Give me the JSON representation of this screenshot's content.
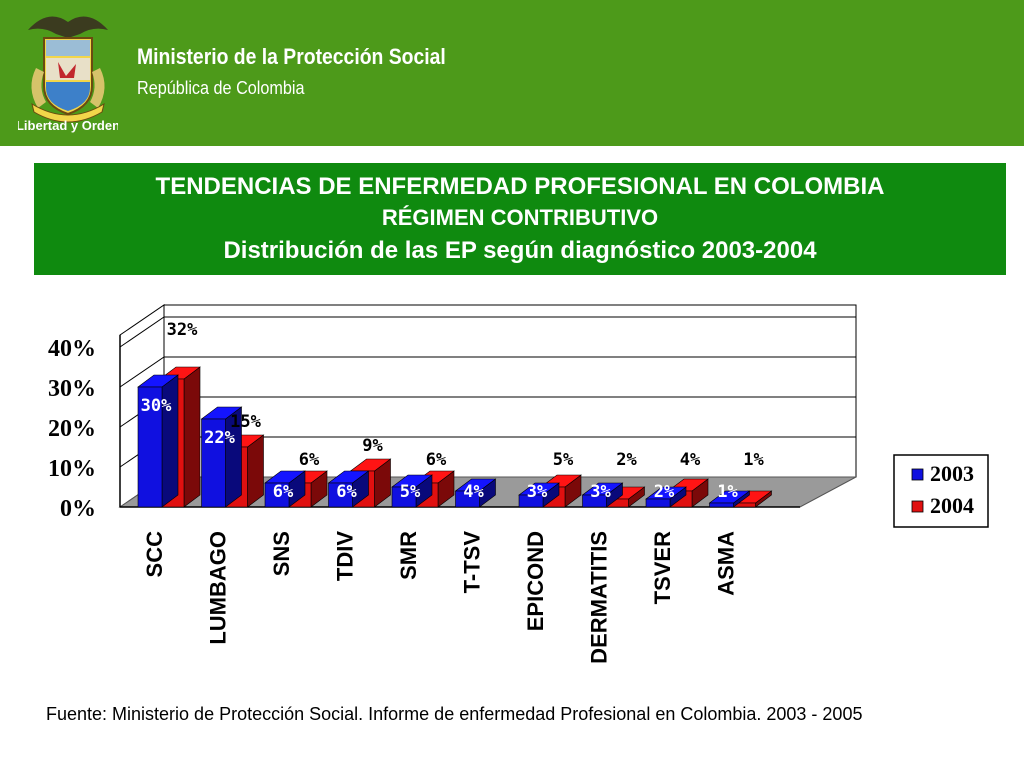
{
  "header": {
    "org_name": "Ministerio de la Protección Social",
    "org_sub": "República de Colombia",
    "logo_motto": "Libertad y Orden",
    "background_color": "#4d9a1a"
  },
  "title": {
    "line1": "TENDENCIAS DE ENFERMEDAD PROFESIONAL EN COLOMBIA",
    "line2": "RÉGIMEN CONTRIBUTIVO",
    "line3": "Distribución de las EP según diagnóstico 2003-2004",
    "background_color": "#0f8a0f"
  },
  "chart_data": {
    "type": "bar",
    "style": "3d-clustered",
    "categories": [
      "SCC",
      "LUMBAGO",
      "SNS",
      "TDIV",
      "SMR",
      "T-TSV",
      "EPICOND",
      "DERMATITIS",
      "TSVER",
      "ASMA"
    ],
    "category_labels_shown": [
      "SCC",
      "LUMBAGO",
      "SNS",
      "TDIV",
      "SMR",
      "T-TSV",
      "EPICOND",
      "DERMATITIS",
      "TSVER",
      "ASMA"
    ],
    "series": [
      {
        "name": "2003",
        "color": "#1010e0",
        "values": [
          30,
          22,
          6,
          6,
          5,
          4,
          3,
          3,
          2,
          1
        ],
        "labels": [
          "30%",
          "22%",
          "6%",
          "6%",
          "5%",
          "4%",
          "3%",
          "3%",
          "2%",
          "1%"
        ]
      },
      {
        "name": "2004",
        "color": "#e01010",
        "values": [
          32,
          15,
          6,
          9,
          6,
          0,
          5,
          2,
          4,
          1
        ],
        "labels": [
          "32%",
          "15%",
          "6%",
          "9%",
          "6%",
          "",
          "5%",
          "2%",
          "4%",
          "1%"
        ]
      }
    ],
    "y_ticks": [
      "0%",
      "10%",
      "20%",
      "30%",
      "40%"
    ],
    "ylim": [
      0,
      40
    ],
    "grid": true,
    "legend": "right"
  },
  "source": "Fuente: Ministerio de Protección Social. Informe de enfermedad Profesional en Colombia. 2003 - 2005"
}
